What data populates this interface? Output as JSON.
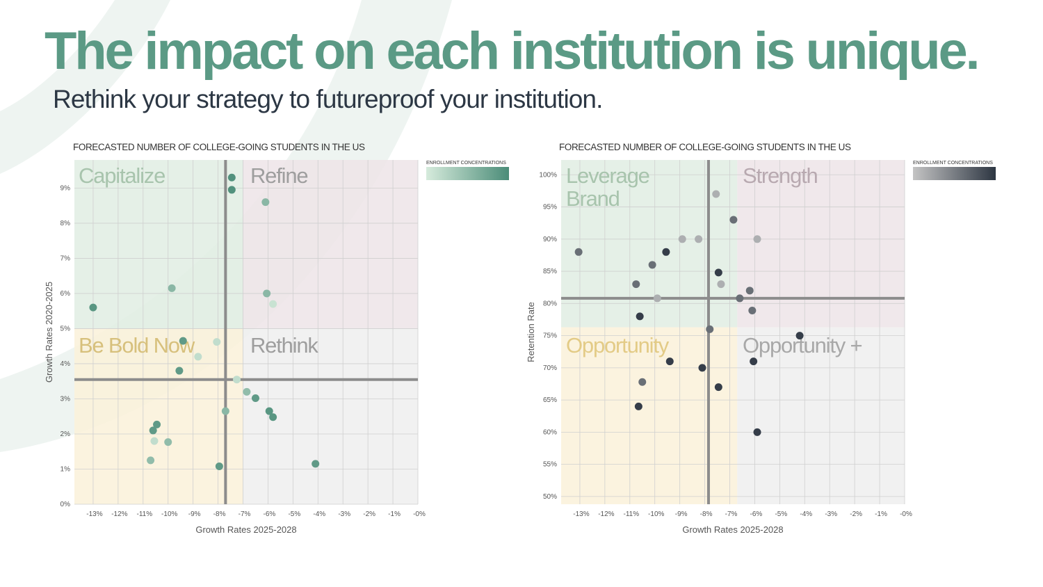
{
  "header": {
    "title": "The impact on each institution is unique.",
    "subtitle": "Rethink your strategy to futureproof your institution."
  },
  "colors": {
    "title": "#5b9a85",
    "subtitle": "#2c3744",
    "quad_green": "#e1ede3",
    "quad_pink": "#ede4e8",
    "quad_yellow": "#faf1d9",
    "quad_gray": "#efefef"
  },
  "chart_data": [
    {
      "type": "scatter",
      "title": "FORECASTED NUMBER OF COLLEGE-GOING STUDENTS IN THE US",
      "xlabel": "Growth Rates 2025-2028",
      "ylabel": "Growth Rates 2020-2025",
      "xlim": [
        -13.75,
        0
      ],
      "ylim": [
        0,
        9.8
      ],
      "x_ticks": [
        -13,
        -12,
        -11,
        -10,
        -9,
        -8,
        -7,
        -6,
        -5,
        -4,
        -3,
        -2,
        -1,
        0
      ],
      "x_tick_labels": [
        "-13%",
        "-12%",
        "-11%",
        "-10%",
        "-9%",
        "-8%",
        "-7%",
        "-6%",
        "-5%",
        "-4%",
        "-3%",
        "-2%",
        "-1%",
        "-0%"
      ],
      "y_ticks": [
        0,
        1,
        2,
        3,
        4,
        5,
        6,
        7,
        8,
        9
      ],
      "y_tick_labels": [
        "0%",
        "1%",
        "2%",
        "3%",
        "4%",
        "5%",
        "6%",
        "7%",
        "8%",
        "9%"
      ],
      "grid": true,
      "divider_x": -7.7,
      "divider_y": 3.55,
      "quadrant_split_x": -7,
      "quadrant_split_y": 5,
      "quadrants": [
        {
          "label": "Capitalize",
          "position": "top-left",
          "color": "#a8c4ad"
        },
        {
          "label": "Refine",
          "position": "top-right",
          "color": "#9e9e9e"
        },
        {
          "label": "Be Bold Now",
          "position": "bottom-left",
          "color": "#d7c07c"
        },
        {
          "label": "Rethink",
          "position": "bottom-right",
          "color": "#9e9e9e"
        }
      ],
      "legend": {
        "title": "ENROLLMENT CONCENTRATIONS",
        "position": "top-right",
        "gradient": [
          "#d6ebdc",
          "#4b8c78"
        ]
      },
      "points": [
        {
          "x": -7.45,
          "y": 9.3,
          "c": 0.95
        },
        {
          "x": -7.45,
          "y": 8.95,
          "c": 0.95
        },
        {
          "x": -6.1,
          "y": 8.6,
          "c": 0.55
        },
        {
          "x": -9.85,
          "y": 6.15,
          "c": 0.55
        },
        {
          "x": -6.05,
          "y": 6.0,
          "c": 0.55
        },
        {
          "x": -5.8,
          "y": 5.7,
          "c": 0.1
        },
        {
          "x": -13.0,
          "y": 5.6,
          "c": 0.9
        },
        {
          "x": -9.4,
          "y": 4.65,
          "c": 0.85
        },
        {
          "x": -8.05,
          "y": 4.62,
          "c": 0.15
        },
        {
          "x": -8.8,
          "y": 4.2,
          "c": 0.15
        },
        {
          "x": -9.55,
          "y": 3.8,
          "c": 0.85
        },
        {
          "x": -7.25,
          "y": 3.55,
          "c": 0.15
        },
        {
          "x": -6.85,
          "y": 3.2,
          "c": 0.5
        },
        {
          "x": -6.5,
          "y": 3.02,
          "c": 0.85
        },
        {
          "x": -7.7,
          "y": 2.65,
          "c": 0.55
        },
        {
          "x": -5.95,
          "y": 2.65,
          "c": 0.9
        },
        {
          "x": -5.8,
          "y": 2.48,
          "c": 0.9
        },
        {
          "x": -10.45,
          "y": 2.27,
          "c": 0.85
        },
        {
          "x": -10.6,
          "y": 2.1,
          "c": 0.85
        },
        {
          "x": -10.55,
          "y": 1.8,
          "c": 0.15
        },
        {
          "x": -10.0,
          "y": 1.77,
          "c": 0.5
        },
        {
          "x": -10.7,
          "y": 1.25,
          "c": 0.5
        },
        {
          "x": -7.95,
          "y": 1.08,
          "c": 0.85
        },
        {
          "x": -4.1,
          "y": 1.15,
          "c": 0.85
        }
      ]
    },
    {
      "type": "scatter",
      "title": "FORECASTED NUMBER OF COLLEGE-GOING STUDENTS IN THE US",
      "xlabel": "Growth Rates 2025-2028",
      "ylabel": "Retention Rate",
      "xlim": [
        -13.75,
        0
      ],
      "ylim": [
        48.8,
        102.3
      ],
      "x_ticks": [
        -13,
        -12,
        -11,
        -10,
        -9,
        -8,
        -7,
        -6,
        -5,
        -4,
        -3,
        -2,
        -1,
        0
      ],
      "x_tick_labels": [
        "-13%",
        "-12%",
        "-11%",
        "-10%",
        "-9%",
        "-8%",
        "-7%",
        "-6%",
        "-5%",
        "-4%",
        "-3%",
        "-2%",
        "-1%",
        "-0%"
      ],
      "y_ticks": [
        50,
        55,
        60,
        65,
        70,
        75,
        80,
        85,
        90,
        95,
        100
      ],
      "y_tick_labels": [
        "50%",
        "55%",
        "60%",
        "65%",
        "70%",
        "75%",
        "80%",
        "85%",
        "90%",
        "95%",
        "100%"
      ],
      "grid": true,
      "divider_x": -7.85,
      "divider_y": 80.8,
      "quadrant_split_x": -6.7,
      "quadrant_split_y": 76.3,
      "quadrants": [
        {
          "label": "Leverage Brand",
          "lines": [
            "Leverage",
            "Brand"
          ],
          "position": "top-left",
          "color": "#a8c4ad"
        },
        {
          "label": "Strength",
          "position": "top-right",
          "color": "#b8a9b0"
        },
        {
          "label": "Opportunity",
          "position": "bottom-left",
          "color": "#e3cb86"
        },
        {
          "label": "Opportunity +",
          "position": "bottom-right",
          "color": "#a8a8a8"
        }
      ],
      "legend": {
        "title": "ENROLLMENT CONCENTRATIONS",
        "position": "top-right",
        "gradient": [
          "#c4c4c4",
          "#2d3642"
        ]
      },
      "points": [
        {
          "x": -7.55,
          "y": 97.0,
          "c": 0.15
        },
        {
          "x": -6.85,
          "y": 93.0,
          "c": 0.6
        },
        {
          "x": -8.9,
          "y": 90.0,
          "c": 0.15
        },
        {
          "x": -8.25,
          "y": 90.0,
          "c": 0.15
        },
        {
          "x": -5.9,
          "y": 90.0,
          "c": 0.15
        },
        {
          "x": -13.05,
          "y": 88.0,
          "c": 0.6
        },
        {
          "x": -9.55,
          "y": 88.0,
          "c": 0.95
        },
        {
          "x": -10.1,
          "y": 86.0,
          "c": 0.6
        },
        {
          "x": -7.45,
          "y": 84.8,
          "c": 0.95
        },
        {
          "x": -10.75,
          "y": 83.0,
          "c": 0.6
        },
        {
          "x": -7.35,
          "y": 83.0,
          "c": 0.15
        },
        {
          "x": -6.2,
          "y": 82.0,
          "c": 0.6
        },
        {
          "x": -9.9,
          "y": 80.8,
          "c": 0.15
        },
        {
          "x": -6.6,
          "y": 80.8,
          "c": 0.6
        },
        {
          "x": -6.1,
          "y": 78.9,
          "c": 0.6
        },
        {
          "x": -10.6,
          "y": 78.0,
          "c": 0.95
        },
        {
          "x": -7.8,
          "y": 76.0,
          "c": 0.6
        },
        {
          "x": -4.2,
          "y": 75.0,
          "c": 0.95
        },
        {
          "x": -9.4,
          "y": 71.0,
          "c": 0.95
        },
        {
          "x": -6.05,
          "y": 71.0,
          "c": 0.95
        },
        {
          "x": -8.1,
          "y": 70.0,
          "c": 0.95
        },
        {
          "x": -10.5,
          "y": 67.8,
          "c": 0.6
        },
        {
          "x": -7.45,
          "y": 67.0,
          "c": 0.95
        },
        {
          "x": -10.65,
          "y": 64.0,
          "c": 0.95
        },
        {
          "x": -5.9,
          "y": 60.0,
          "c": 0.95
        }
      ]
    }
  ]
}
